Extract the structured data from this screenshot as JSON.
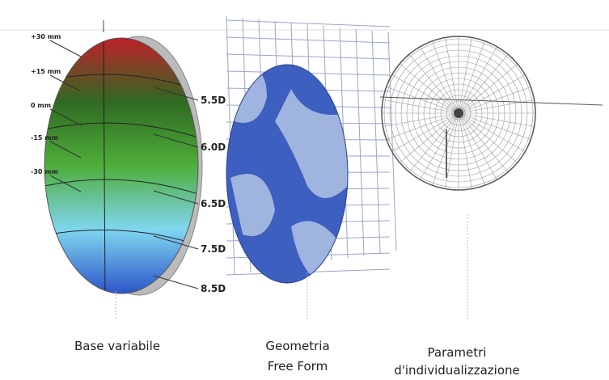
{
  "lens_base": {
    "heights": [
      "+30 mm",
      "+15 mm",
      "0 mm",
      "-15 mm",
      "-30 mm"
    ],
    "powers": [
      "5.5D",
      "6.0D",
      "6.5D",
      "7.5D",
      "8.5D"
    ]
  },
  "captions": [
    {
      "lines": [
        "Base variabile"
      ]
    },
    {
      "lines": [
        "Geometria",
        "Free Form"
      ]
    },
    {
      "lines": [
        "Parametri",
        "d'individualizzazione"
      ]
    }
  ]
}
